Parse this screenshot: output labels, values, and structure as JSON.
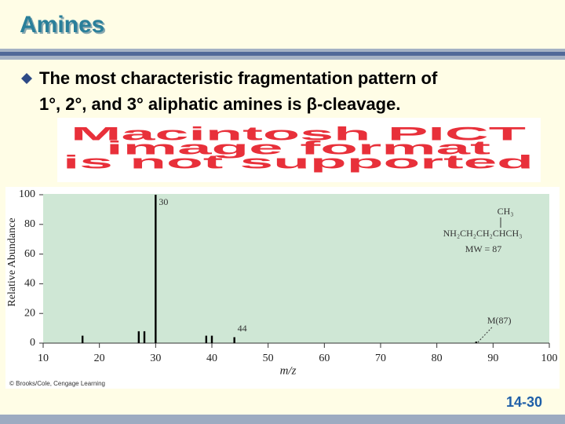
{
  "header": {
    "title": "Amines"
  },
  "bullet": {
    "lines": [
      "The most characteristic fragmentation pattern of",
      "1°, 2°, and 3° aliphatic amines is β-cleavage."
    ]
  },
  "placeholder": {
    "lines": [
      "Macintosh PICT",
      "image format",
      "is not supported"
    ]
  },
  "chart_data": {
    "type": "bar",
    "color": "#000000",
    "x": [
      17,
      27,
      28,
      30,
      39,
      40,
      44,
      87
    ],
    "values": [
      5,
      8,
      8,
      100,
      5,
      5,
      4,
      1
    ],
    "xlim": [
      10,
      100
    ],
    "xticks": [
      10,
      20,
      30,
      40,
      50,
      60,
      70,
      80,
      90,
      100
    ],
    "ylim": [
      0,
      100
    ],
    "yticks": [
      0,
      20,
      40,
      60,
      80,
      100
    ],
    "xlabel": "m/z",
    "ylabel": "Relative Abundance",
    "annotations": [
      {
        "text": "30",
        "x": 30
      },
      {
        "text": "44",
        "x": 44
      },
      {
        "text": "M(87)",
        "x": 87
      }
    ],
    "structure": [
      "CH₃",
      "NH₂CH₂CH₂CHCH₃",
      "MW = 87"
    ]
  },
  "credit": "© Brooks/Cole, Cengage Learning",
  "footer": {
    "page": "14-30"
  }
}
